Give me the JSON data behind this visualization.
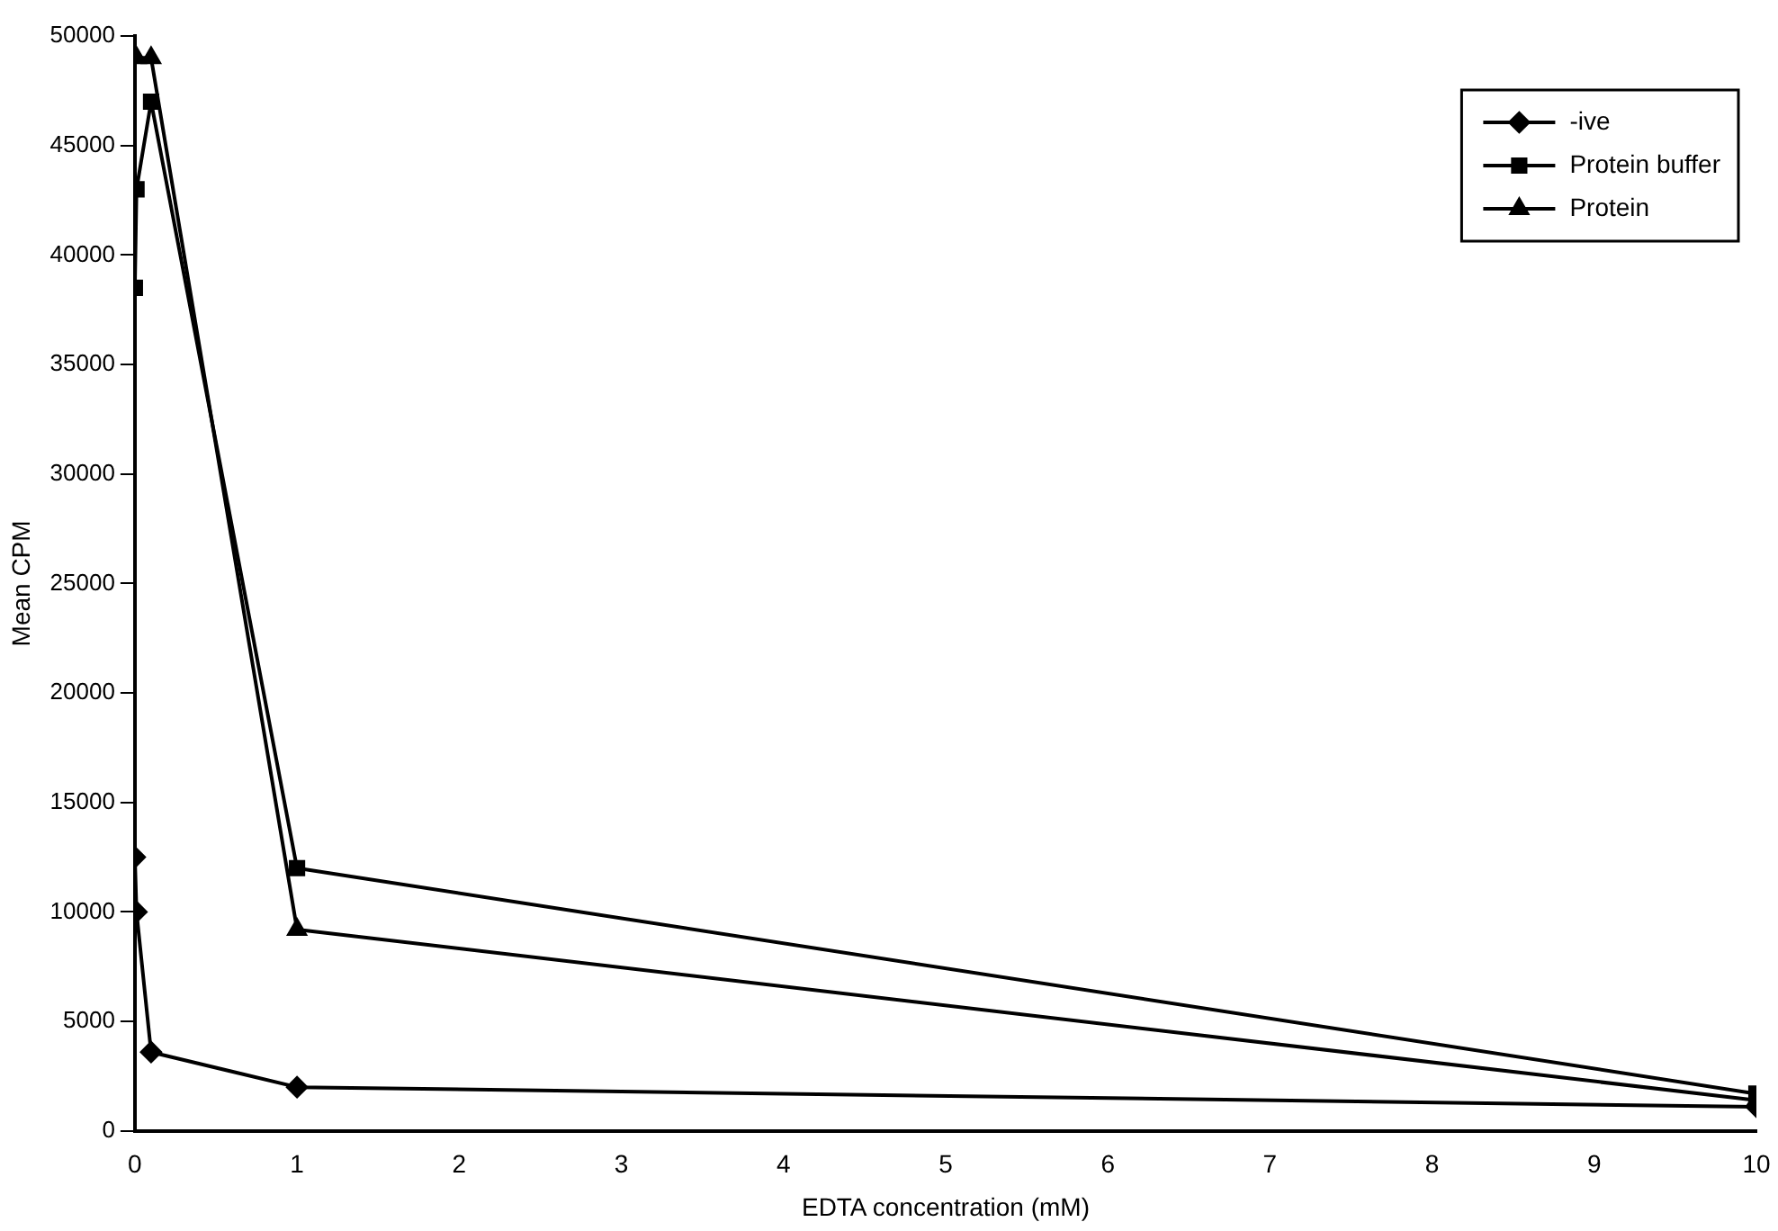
{
  "chart_data": {
    "type": "line",
    "xlabel": "EDTA concentration (mM)",
    "ylabel": "Mean CPM",
    "xlim": [
      0,
      10
    ],
    "xticks": [
      0,
      1,
      2,
      3,
      4,
      5,
      6,
      7,
      8,
      9,
      10
    ],
    "ylim": [
      0,
      50000
    ],
    "yticks": [
      0,
      5000,
      10000,
      15000,
      20000,
      25000,
      30000,
      35000,
      40000,
      45000,
      50000
    ],
    "grid": false,
    "legend": "top right",
    "series": [
      {
        "name": "-ive",
        "color": "#000000",
        "marker": "diamond",
        "x": [
          0,
          0.01,
          0.1,
          1,
          10
        ],
        "values": [
          12500,
          10000,
          3600,
          2000,
          1100
        ]
      },
      {
        "name": "Protein buffer",
        "color": "#000000",
        "marker": "square",
        "x": [
          0,
          0.01,
          0.1,
          1,
          10
        ],
        "values": [
          38500,
          43000,
          47000,
          12000,
          1700
        ]
      },
      {
        "name": "Protein",
        "color": "#000000",
        "marker": "triangle",
        "x": [
          0.01,
          0.1,
          1,
          10
        ],
        "values": [
          49000,
          49000,
          9200,
          1400
        ]
      }
    ]
  }
}
